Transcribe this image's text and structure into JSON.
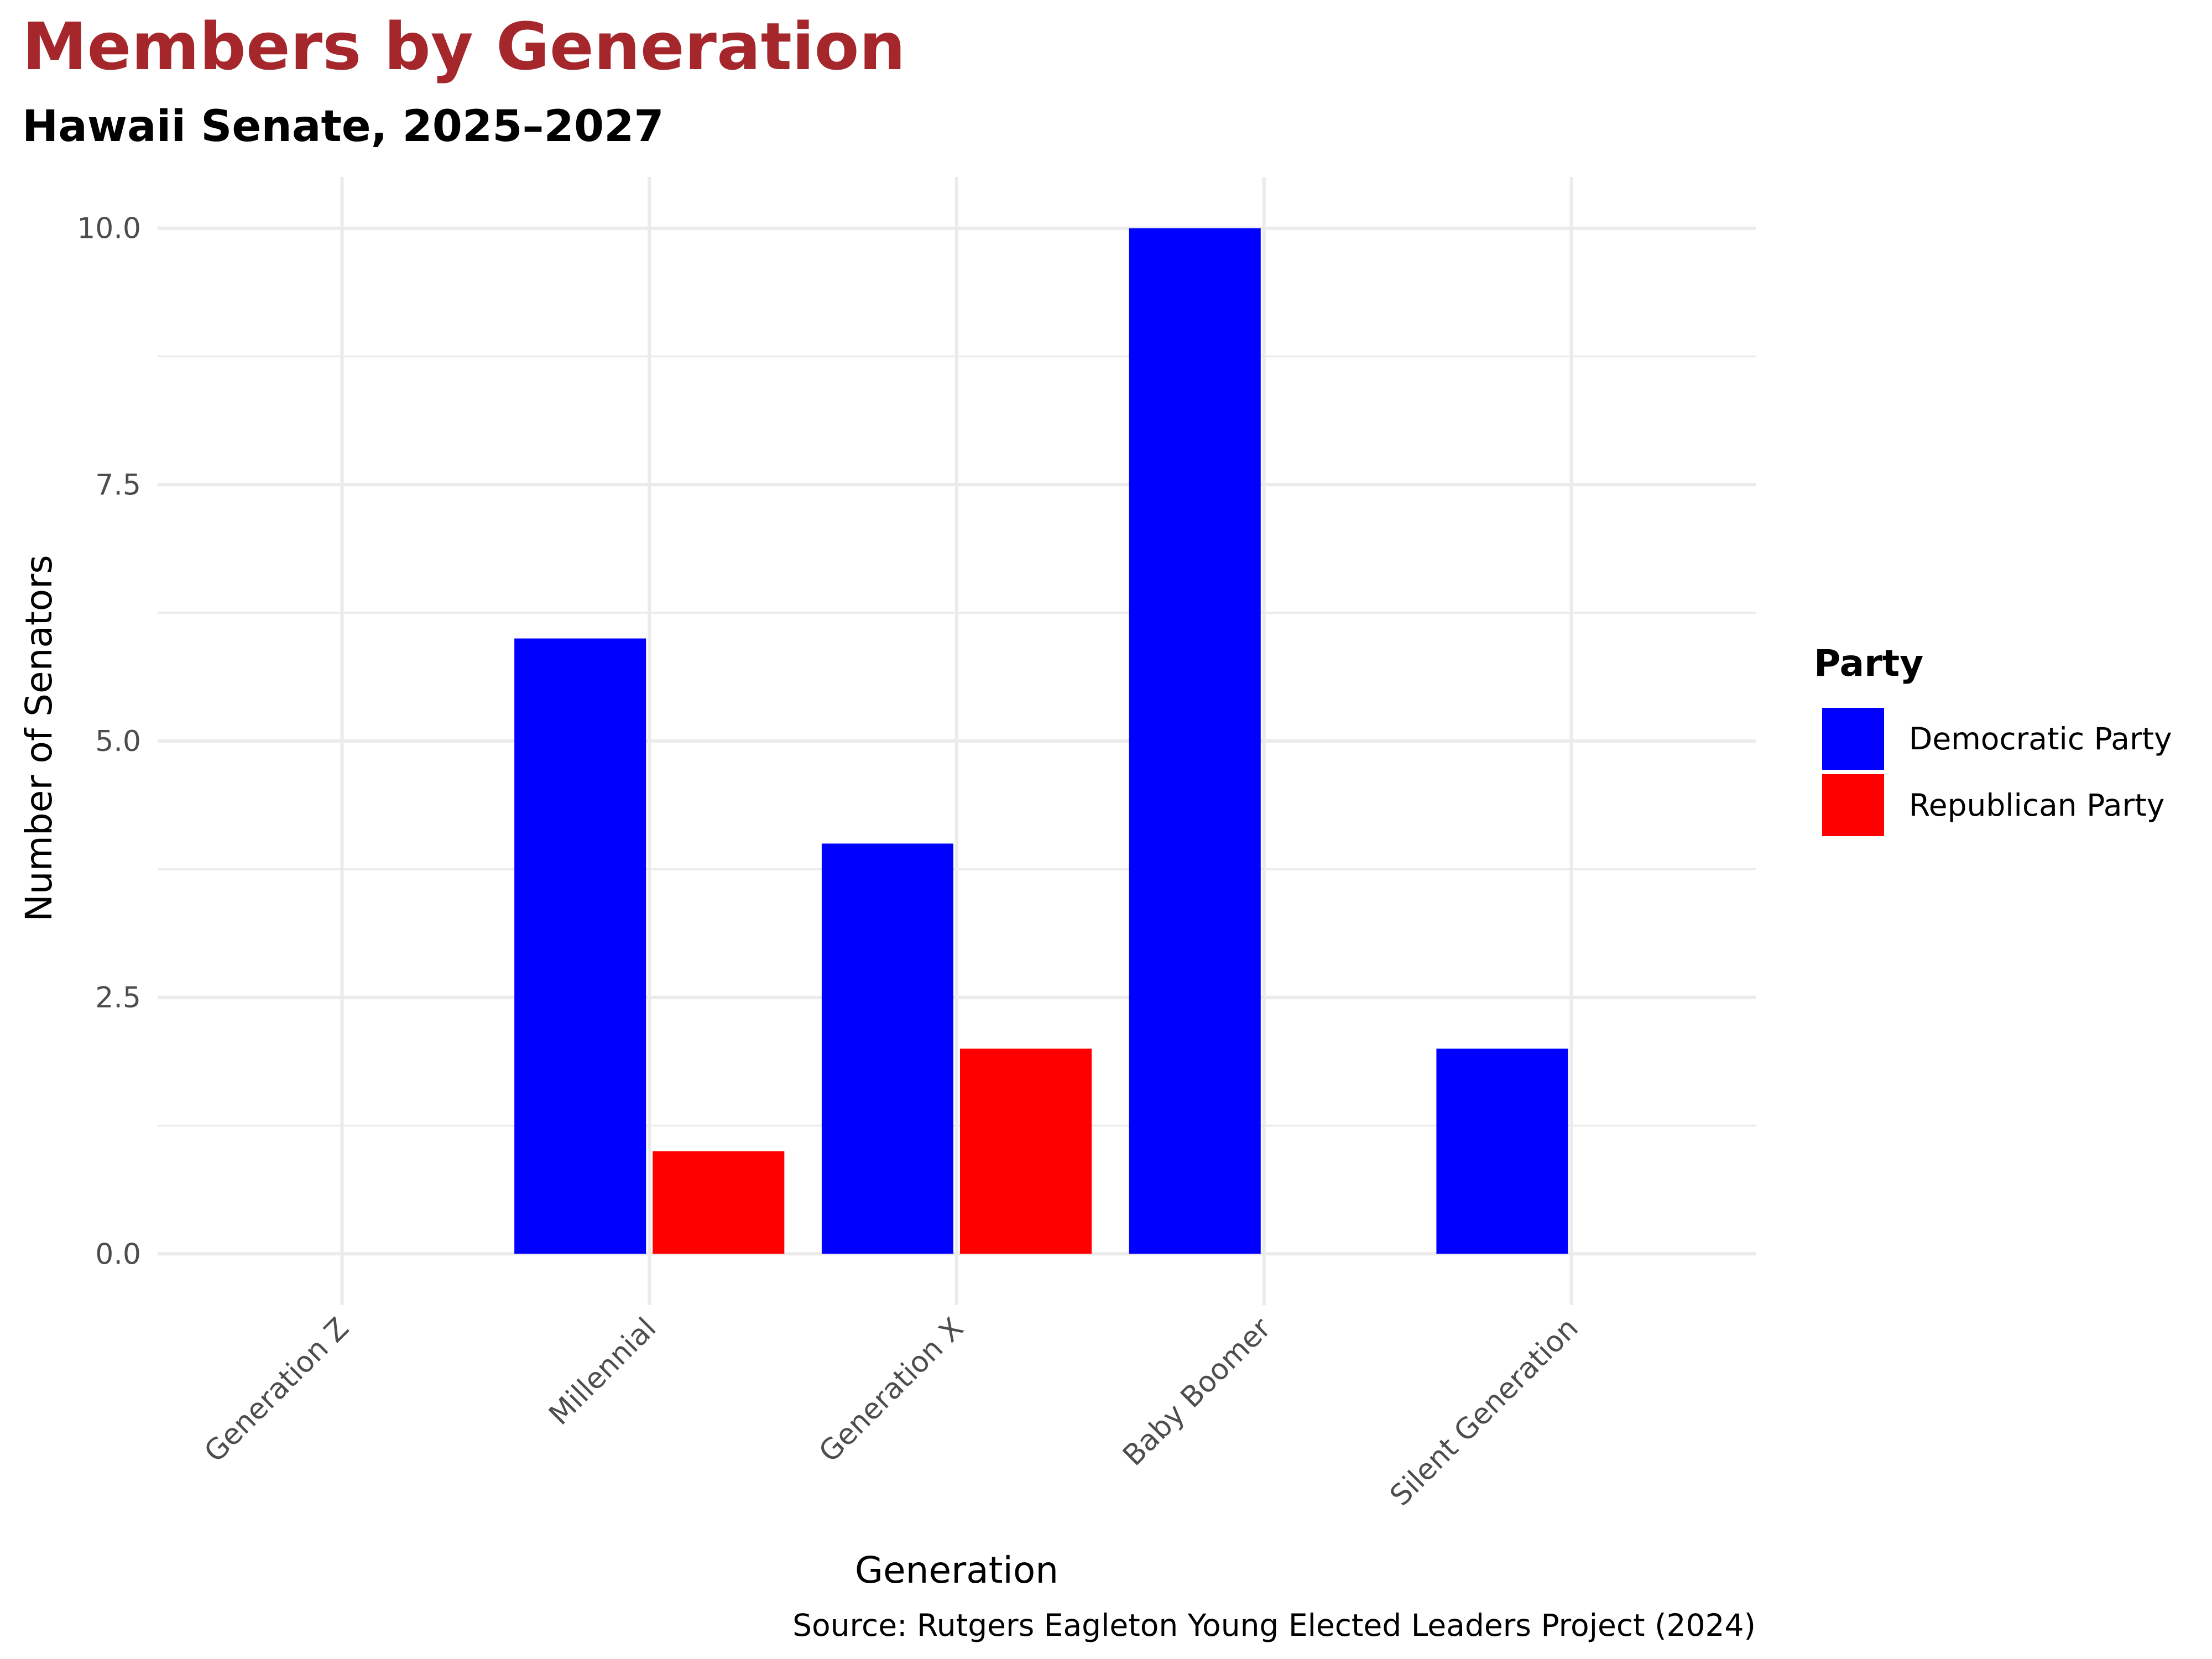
{
  "chart_data": {
    "type": "bar",
    "title": "Members by Generation",
    "subtitle": "Hawaii Senate, 2025–2027",
    "xlabel": "Generation",
    "ylabel": "Number of Senators",
    "caption": "Source: Rutgers Eagleton Young Elected Leaders Project (2024)",
    "categories": [
      "Generation Z",
      "Millennial",
      "Generation X",
      "Baby Boomer",
      "Silent Generation"
    ],
    "series": [
      {
        "name": "Democratic Party",
        "color": "#0000ff",
        "values": [
          null,
          6,
          4,
          10,
          2
        ]
      },
      {
        "name": "Republican Party",
        "color": "#ff0000",
        "values": [
          null,
          1,
          2,
          null,
          null
        ]
      }
    ],
    "yticks": [
      0,
      2.5,
      5,
      7.5,
      10
    ],
    "ytick_labels": [
      "0.0",
      "2.5",
      "5.0",
      "7.5",
      "10.0"
    ],
    "ylim": [
      -0.5,
      10.5
    ],
    "legend_title": "Party",
    "legend_position": "right",
    "grid": true
  }
}
